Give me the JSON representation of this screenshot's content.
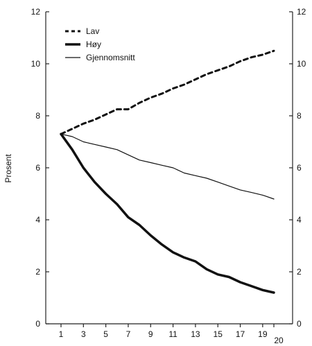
{
  "chart_data": {
    "type": "line",
    "title": "",
    "xlabel": "",
    "ylabel": "Prosent",
    "ylim": [
      0,
      12
    ],
    "xlim": [
      0,
      20
    ],
    "y_ticks": [
      0,
      2,
      4,
      6,
      8,
      10,
      12
    ],
    "x_ticks": [
      1,
      3,
      5,
      7,
      9,
      11,
      13,
      15,
      17,
      19,
      20
    ],
    "grid": false,
    "legend_position": "top-left",
    "secondary_y_axis": true,
    "series": [
      {
        "name": "Lav",
        "style": "dashed",
        "stroke_width": 3,
        "x": [
          1,
          2,
          3,
          4,
          5,
          6,
          7,
          8,
          9,
          10,
          11,
          12,
          13,
          14,
          15,
          16,
          17,
          18,
          19,
          20
        ],
        "values": [
          7.3,
          7.5,
          7.7,
          7.85,
          8.05,
          8.25,
          8.25,
          8.5,
          8.7,
          8.85,
          9.05,
          9.2,
          9.4,
          9.6,
          9.75,
          9.9,
          10.1,
          10.25,
          10.35,
          10.5
        ]
      },
      {
        "name": "Høy",
        "style": "solid",
        "stroke_width": 3.5,
        "x": [
          1,
          2,
          3,
          4,
          5,
          6,
          7,
          8,
          9,
          10,
          11,
          12,
          13,
          14,
          15,
          16,
          17,
          18,
          19,
          20
        ],
        "values": [
          7.3,
          6.7,
          6.0,
          5.45,
          5.0,
          4.6,
          4.1,
          3.8,
          3.4,
          3.05,
          2.75,
          2.55,
          2.4,
          2.1,
          1.9,
          1.8,
          1.6,
          1.45,
          1.3,
          1.2
        ]
      },
      {
        "name": "Gjennomsnitt",
        "style": "solid",
        "stroke_width": 1.2,
        "x": [
          1,
          2,
          3,
          4,
          5,
          6,
          7,
          8,
          9,
          10,
          11,
          12,
          13,
          14,
          15,
          16,
          17,
          18,
          19,
          20
        ],
        "values": [
          7.3,
          7.2,
          7.0,
          6.9,
          6.8,
          6.7,
          6.5,
          6.3,
          6.2,
          6.1,
          6.0,
          5.8,
          5.7,
          5.6,
          5.45,
          5.3,
          5.15,
          5.05,
          4.95,
          4.8
        ]
      }
    ]
  }
}
